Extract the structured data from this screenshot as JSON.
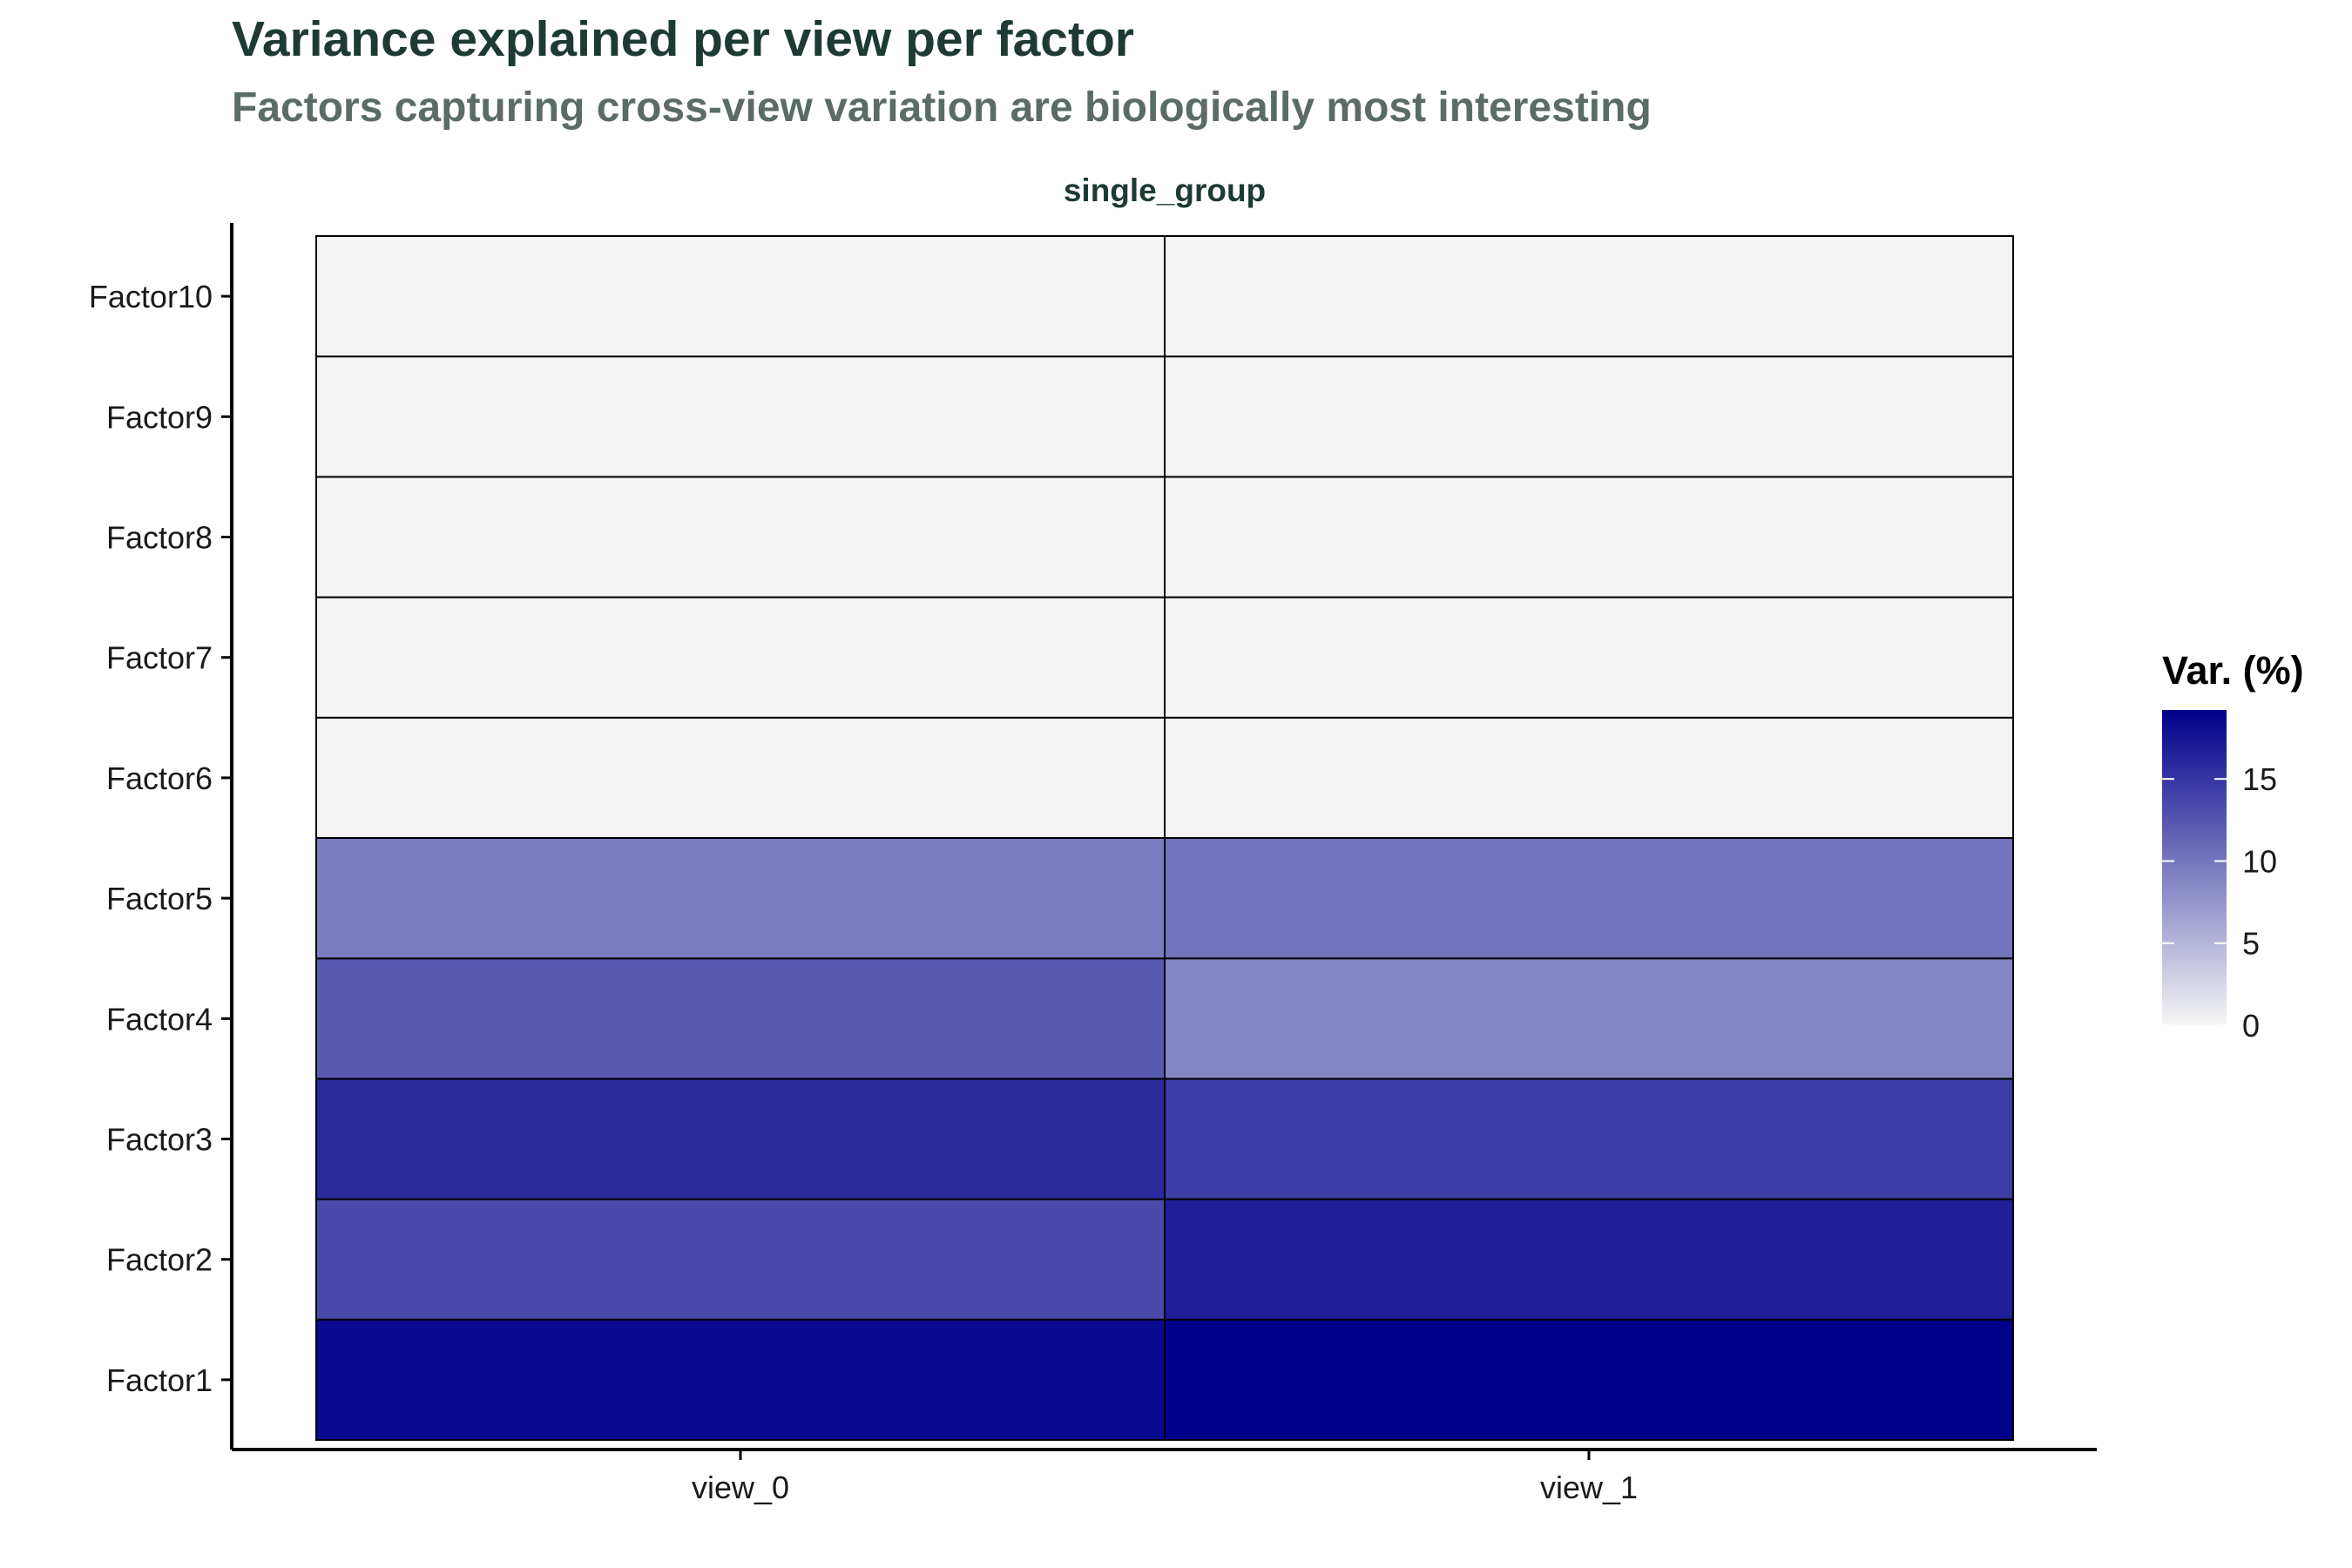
{
  "chart_data": {
    "type": "heatmap",
    "title": "Variance explained per view per factor",
    "subtitle": "Factors capturing cross-view variation are biologically most interesting",
    "facet_label": "single_group",
    "x_categories": [
      "view_0",
      "view_1"
    ],
    "y_categories": [
      "Factor1",
      "Factor2",
      "Factor3",
      "Factor4",
      "Factor5",
      "Factor6",
      "Factor7",
      "Factor8",
      "Factor9",
      "Factor10"
    ],
    "values": [
      [
        18.5,
        19.2
      ],
      [
        13.5,
        16.8
      ],
      [
        15.8,
        14.5
      ],
      [
        12.2,
        8.8
      ],
      [
        9.5,
        10.2
      ],
      [
        0,
        0
      ],
      [
        0,
        0
      ],
      [
        0,
        0
      ],
      [
        0,
        0
      ],
      [
        0,
        0
      ]
    ],
    "color_scale": {
      "title": "Var. (%)",
      "low_color": "#f5f5f5",
      "high_color": "#00008b",
      "min": 0,
      "max": 19.2,
      "ticks": [
        0,
        5,
        10,
        15
      ]
    },
    "xlabel": "",
    "ylabel": "",
    "legend_position": "right",
    "grid": false
  }
}
